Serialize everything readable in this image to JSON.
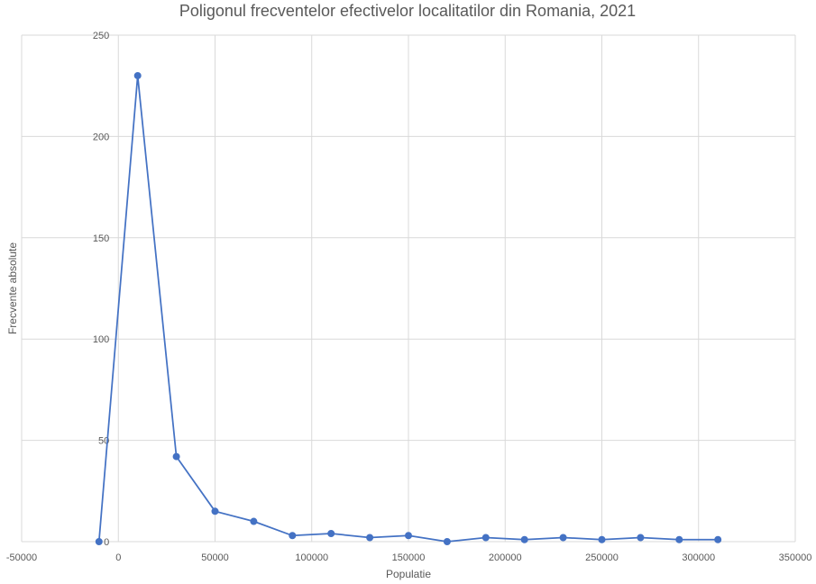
{
  "chart_data": {
    "type": "line",
    "title": "Poligonul frecventelor efectivelor localitatilor din Romania, 2021",
    "xlabel": "Populatie",
    "ylabel": "Frecvente absolute",
    "xlim": [
      -50000,
      350000
    ],
    "ylim": [
      0,
      250
    ],
    "x_ticks": [
      -50000,
      0,
      50000,
      100000,
      150000,
      200000,
      250000,
      300000,
      350000
    ],
    "y_ticks": [
      0,
      50,
      100,
      150,
      200,
      250
    ],
    "grid": true,
    "legend": "none",
    "color": "#4472c4",
    "series": [
      {
        "x": [
          -10000,
          10000,
          30000,
          50000,
          70000,
          90000,
          110000,
          130000,
          150000,
          170000,
          190000,
          210000,
          230000,
          250000,
          270000,
          290000,
          310000
        ],
        "y": [
          0,
          230,
          42,
          15,
          10,
          3,
          4,
          2,
          3,
          0,
          2,
          1,
          2,
          1,
          2,
          1,
          1
        ]
      }
    ]
  }
}
